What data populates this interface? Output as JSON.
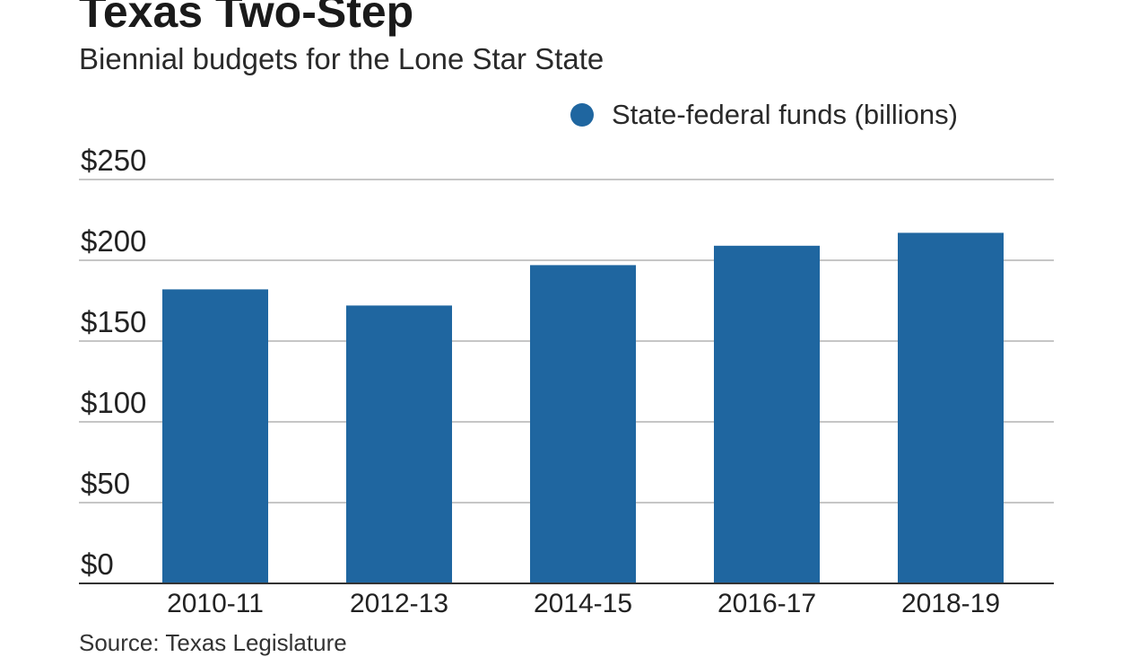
{
  "title": "Texas Two-Step",
  "subtitle": "Biennial budgets for the Lone Star State",
  "source": "Source: Texas Legislature",
  "colors": {
    "bar": "#1f66a0",
    "grid": "#b3b3b3",
    "axis": "#333333",
    "text": "#222222"
  },
  "chart_data": {
    "type": "bar",
    "categories": [
      "2010-11",
      "2012-13",
      "2014-15",
      "2016-17",
      "2018-19"
    ],
    "series": [
      {
        "name": "State-federal funds (billions)",
        "values": [
          182,
          172,
          197,
          209,
          217
        ]
      }
    ],
    "ylim": [
      0,
      250
    ],
    "yticks": [
      0,
      50,
      100,
      150,
      200,
      250
    ],
    "ytick_labels": [
      "$0",
      "$50",
      "$100",
      "$150",
      "$200",
      "$250"
    ],
    "grid": true,
    "legend": "top-right"
  }
}
